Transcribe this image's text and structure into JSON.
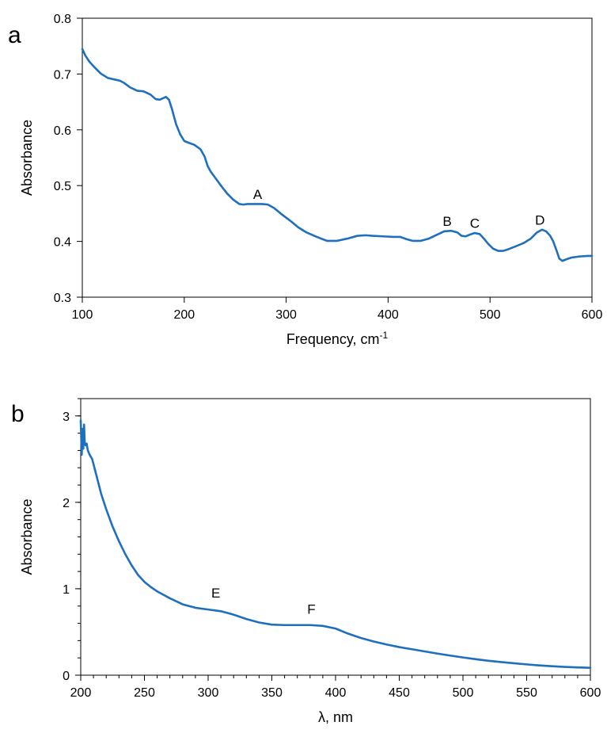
{
  "chart_data": [
    {
      "panel": "a",
      "type": "line",
      "title": "",
      "xlabel": "Frequency, cm",
      "xlabel_sup": "-1",
      "ylabel": "Absorbance",
      "xlim": [
        100,
        600
      ],
      "ylim": [
        0.3,
        0.8
      ],
      "xticks": [
        100,
        200,
        300,
        400,
        500,
        600
      ],
      "yticks": [
        0.3,
        0.4,
        0.5,
        0.6,
        0.7,
        0.8
      ],
      "ytick_labels": [
        "0.3",
        "0.4",
        "0.5",
        "0.6",
        "0.7",
        "0.8"
      ],
      "grid": false,
      "series_color": "#1f6fbf",
      "annotations": [
        {
          "text": "A",
          "x": 272,
          "y": 0.476
        },
        {
          "text": "B",
          "x": 458,
          "y": 0.428
        },
        {
          "text": "C",
          "x": 485,
          "y": 0.424
        },
        {
          "text": "D",
          "x": 549,
          "y": 0.43
        }
      ],
      "series": [
        {
          "x": [
            100,
            103,
            107,
            112,
            118,
            125,
            132,
            137,
            141,
            147,
            154,
            160,
            167,
            172,
            176,
            182,
            185,
            188,
            192,
            196,
            200,
            204,
            210,
            216,
            220,
            223,
            226,
            230,
            236,
            242,
            248,
            254,
            258,
            262,
            268,
            276,
            282,
            288,
            296,
            304,
            312,
            320,
            330,
            340,
            350,
            360,
            370,
            378,
            385,
            395,
            405,
            412,
            418,
            424,
            432,
            440,
            448,
            455,
            462,
            468,
            472,
            476,
            480,
            485,
            490,
            494,
            498,
            503,
            508,
            513,
            518,
            525,
            533,
            540,
            546,
            551,
            555,
            559,
            562,
            565,
            568,
            571,
            575,
            580,
            588,
            596,
            600
          ],
          "y": [
            0.745,
            0.733,
            0.722,
            0.712,
            0.701,
            0.693,
            0.69,
            0.688,
            0.684,
            0.676,
            0.67,
            0.669,
            0.663,
            0.655,
            0.654,
            0.659,
            0.654,
            0.637,
            0.61,
            0.592,
            0.58,
            0.577,
            0.573,
            0.565,
            0.552,
            0.535,
            0.525,
            0.515,
            0.5,
            0.486,
            0.475,
            0.467,
            0.466,
            0.467,
            0.467,
            0.467,
            0.466,
            0.46,
            0.448,
            0.437,
            0.425,
            0.416,
            0.408,
            0.401,
            0.401,
            0.405,
            0.41,
            0.411,
            0.41,
            0.409,
            0.408,
            0.408,
            0.404,
            0.401,
            0.401,
            0.405,
            0.412,
            0.418,
            0.419,
            0.416,
            0.41,
            0.409,
            0.412,
            0.415,
            0.413,
            0.405,
            0.396,
            0.387,
            0.383,
            0.383,
            0.386,
            0.391,
            0.397,
            0.405,
            0.416,
            0.421,
            0.418,
            0.41,
            0.4,
            0.385,
            0.369,
            0.365,
            0.368,
            0.371,
            0.373,
            0.374,
            0.374
          ]
        }
      ]
    },
    {
      "panel": "b",
      "type": "line",
      "title": "",
      "xlabel": "λ, nm",
      "ylabel": "Absorbance",
      "xlim": [
        200,
        600
      ],
      "ylim": [
        0,
        3.2
      ],
      "xticks": [
        200,
        250,
        300,
        350,
        400,
        450,
        500,
        550,
        600
      ],
      "yticks": [
        0,
        1,
        2,
        3
      ],
      "ytick_labels": [
        "0",
        "1",
        "2",
        "3"
      ],
      "grid": false,
      "series_color": "#1f6fbf",
      "annotations": [
        {
          "text": "E",
          "x": 306,
          "y": 0.9
        },
        {
          "text": "F",
          "x": 381,
          "y": 0.71
        }
      ],
      "series": [
        {
          "x": [
            200,
            200.8,
            201.4,
            202,
            202.6,
            203.2,
            203.8,
            204.6,
            205.6,
            207,
            209,
            212,
            216,
            220,
            225,
            230,
            235,
            240,
            245,
            250,
            255,
            260,
            270,
            280,
            290,
            300,
            310,
            320,
            330,
            340,
            350,
            360,
            370,
            380,
            390,
            400,
            410,
            420,
            430,
            440,
            450,
            460,
            470,
            480,
            490,
            500,
            510,
            520,
            530,
            540,
            550,
            560,
            570,
            580,
            590,
            600
          ],
          "y": [
            2.95,
            2.55,
            2.85,
            2.62,
            2.9,
            2.68,
            2.66,
            2.68,
            2.6,
            2.55,
            2.5,
            2.33,
            2.1,
            1.92,
            1.72,
            1.55,
            1.4,
            1.27,
            1.16,
            1.08,
            1.02,
            0.97,
            0.89,
            0.82,
            0.78,
            0.76,
            0.74,
            0.7,
            0.65,
            0.61,
            0.585,
            0.58,
            0.58,
            0.58,
            0.57,
            0.54,
            0.48,
            0.43,
            0.39,
            0.355,
            0.325,
            0.3,
            0.275,
            0.25,
            0.227,
            0.205,
            0.185,
            0.167,
            0.152,
            0.138,
            0.125,
            0.113,
            0.104,
            0.096,
            0.09,
            0.085
          ]
        }
      ]
    }
  ]
}
